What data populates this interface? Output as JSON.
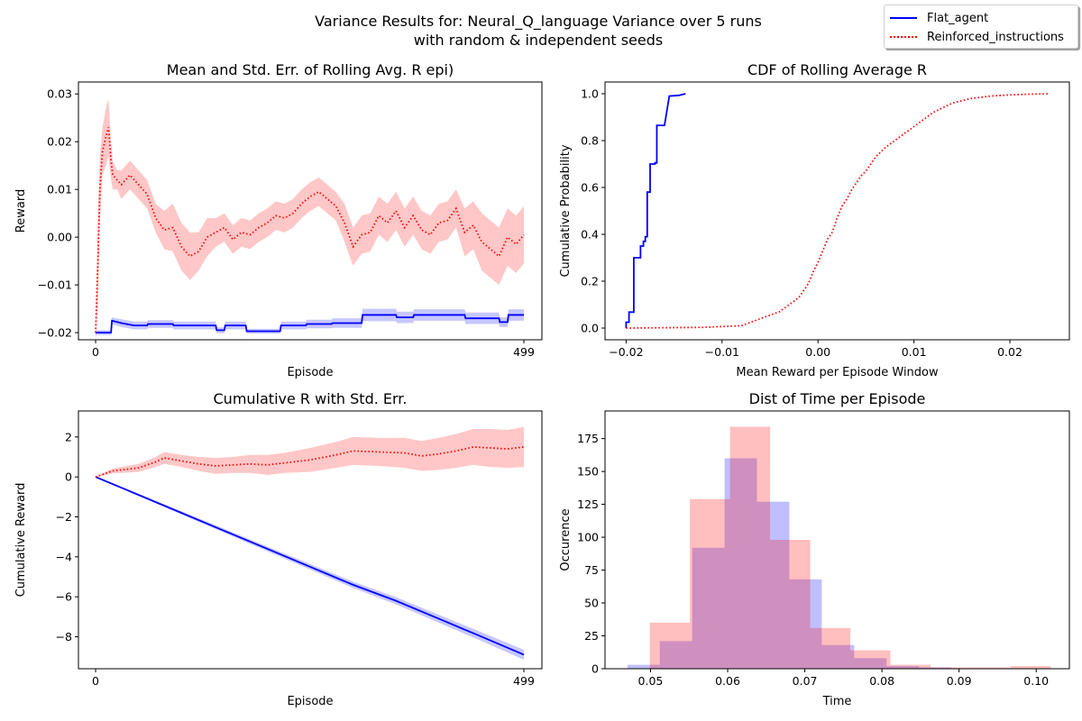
{
  "figure": {
    "suptitle_line1": "Variance Results for: Neural_Q_language Variance over 5 runs",
    "suptitle_line2": "with random & independent seeds",
    "colors": {
      "flat": "#0000ff",
      "reinforced": "#ff0000",
      "flat_fill": "#0000ff",
      "reinforced_fill": "#ff0000"
    },
    "legend": [
      {
        "label": "Flat_agent",
        "color": "#0000ff",
        "style": "solid"
      },
      {
        "label": "Reinforced_instructions",
        "color": "#ff0000",
        "style": "dotted"
      }
    ]
  },
  "chart_data": [
    {
      "type": "line",
      "title": "Mean and Std. Err. of Rolling Avg. R epi)",
      "xlabel": "Episode",
      "ylabel": "Reward",
      "xlim": [
        -20,
        520
      ],
      "ylim": [
        -0.0215,
        0.0325
      ],
      "xticks": [
        0,
        499
      ],
      "xtick_labels": [
        "0",
        "499"
      ],
      "yticks": [
        -0.02,
        -0.01,
        0.0,
        0.01,
        0.02,
        0.03
      ],
      "ytick_labels": [
        "−0.02",
        "−0.01",
        "0.00",
        "0.01",
        "0.02",
        "0.03"
      ],
      "series": [
        {
          "name": "Flat_agent",
          "style": "solid",
          "x": [
            0,
            18,
            19,
            30,
            45,
            60,
            61,
            90,
            91,
            120,
            140,
            141,
            150,
            151,
            175,
            176,
            200,
            215,
            216,
            245,
            246,
            275,
            276,
            310,
            311,
            350,
            351,
            370,
            371,
            430,
            431,
            470,
            471,
            480,
            481,
            499
          ],
          "y": [
            -0.02,
            -0.02,
            -0.0175,
            -0.018,
            -0.0185,
            -0.0185,
            -0.0182,
            -0.0182,
            -0.0185,
            -0.0185,
            -0.0185,
            -0.0195,
            -0.0195,
            -0.0185,
            -0.0185,
            -0.0197,
            -0.0197,
            -0.0197,
            -0.0185,
            -0.0185,
            -0.0182,
            -0.0182,
            -0.018,
            -0.018,
            -0.0163,
            -0.0163,
            -0.0168,
            -0.0168,
            -0.0163,
            -0.0163,
            -0.017,
            -0.017,
            -0.0178,
            -0.0178,
            -0.0163,
            -0.0163
          ],
          "err": [
            0.0005,
            0.0005,
            0.0007,
            0.0008,
            0.0008,
            0.0008,
            0.0008,
            0.0008,
            0.0008,
            0.0008,
            0.0008,
            0.0006,
            0.0006,
            0.0008,
            0.0008,
            0.0005,
            0.0005,
            0.0005,
            0.0008,
            0.0008,
            0.0009,
            0.0009,
            0.001,
            0.001,
            0.0013,
            0.0013,
            0.0012,
            0.0012,
            0.0012,
            0.0012,
            0.0012,
            0.0012,
            0.001,
            0.001,
            0.0012,
            0.0012
          ]
        },
        {
          "name": "Reinforced_instructions",
          "style": "dotted",
          "x": [
            0,
            3,
            5,
            8,
            12,
            15,
            18,
            20,
            25,
            30,
            40,
            50,
            60,
            70,
            80,
            90,
            100,
            110,
            120,
            130,
            140,
            150,
            160,
            170,
            180,
            190,
            200,
            210,
            220,
            230,
            240,
            250,
            260,
            270,
            280,
            290,
            300,
            310,
            320,
            330,
            340,
            350,
            360,
            370,
            380,
            390,
            400,
            410,
            420,
            430,
            440,
            450,
            460,
            470,
            480,
            490,
            499
          ],
          "y": [
            -0.02,
            -0.003,
            0.01,
            0.018,
            0.021,
            0.023,
            0.016,
            0.013,
            0.012,
            0.011,
            0.013,
            0.011,
            0.009,
            0.004,
            0.0015,
            0.002,
            -0.002,
            -0.004,
            -0.003,
            0.0,
            0.001,
            0.002,
            -0.0005,
            0.001,
            0.0005,
            0.002,
            0.003,
            0.0045,
            0.004,
            0.005,
            0.007,
            0.0085,
            0.0095,
            0.008,
            0.0065,
            0.003,
            -0.002,
            0.0005,
            0.001,
            0.0045,
            0.003,
            0.0055,
            0.002,
            0.0045,
            0.0015,
            0.0005,
            0.003,
            0.0035,
            0.006,
            0.001,
            0.0025,
            -0.001,
            -0.0025,
            -0.004,
            0.0,
            -0.0015,
            0.0005
          ],
          "err": [
            0.002,
            0.01,
            0.007,
            0.005,
            0.006,
            0.006,
            0.004,
            0.003,
            0.002,
            0.003,
            0.003,
            0.003,
            0.003,
            0.003,
            0.004,
            0.005,
            0.005,
            0.005,
            0.004,
            0.004,
            0.003,
            0.003,
            0.003,
            0.003,
            0.003,
            0.003,
            0.003,
            0.003,
            0.003,
            0.003,
            0.003,
            0.003,
            0.003,
            0.003,
            0.003,
            0.004,
            0.004,
            0.004,
            0.004,
            0.004,
            0.004,
            0.004,
            0.004,
            0.004,
            0.004,
            0.004,
            0.004,
            0.004,
            0.004,
            0.005,
            0.005,
            0.006,
            0.006,
            0.006,
            0.006,
            0.006,
            0.006
          ]
        }
      ]
    },
    {
      "type": "line",
      "title": "CDF of Rolling Average R",
      "xlabel": "Mean Reward per Episode Window",
      "ylabel": "Cumulative Probability",
      "xlim": [
        -0.0222,
        0.0262
      ],
      "ylim": [
        -0.05,
        1.05
      ],
      "xticks": [
        -0.02,
        -0.01,
        0.0,
        0.01,
        0.02
      ],
      "xtick_labels": [
        "−0.02",
        "−0.01",
        "0.00",
        "0.01",
        "0.02"
      ],
      "yticks": [
        0.0,
        0.2,
        0.4,
        0.6,
        0.8,
        1.0
      ],
      "ytick_labels": [
        "0.0",
        "0.2",
        "0.4",
        "0.6",
        "0.8",
        "1.0"
      ],
      "series": [
        {
          "name": "Flat_agent",
          "style": "solid",
          "x": [
            -0.02,
            -0.02,
            -0.0197,
            -0.0197,
            -0.0195,
            -0.0195,
            -0.0192,
            -0.0192,
            -0.0185,
            -0.0185,
            -0.0182,
            -0.0182,
            -0.018,
            -0.018,
            -0.0178,
            -0.0178,
            -0.0175,
            -0.0175,
            -0.017,
            -0.017,
            -0.0168,
            -0.0168,
            -0.0163,
            -0.0163,
            -0.016,
            -0.0155,
            -0.0145,
            -0.0138
          ],
          "y": [
            0.0,
            0.025,
            0.025,
            0.068,
            0.068,
            0.068,
            0.068,
            0.3,
            0.3,
            0.35,
            0.35,
            0.37,
            0.37,
            0.39,
            0.39,
            0.58,
            0.58,
            0.7,
            0.7,
            0.705,
            0.705,
            0.865,
            0.865,
            0.865,
            0.865,
            0.99,
            0.993,
            1.0
          ]
        },
        {
          "name": "Reinforced_instructions",
          "style": "dotted",
          "x": [
            -0.02,
            -0.012,
            -0.008,
            -0.006,
            -0.004,
            -0.003,
            -0.002,
            -0.0015,
            -0.001,
            -0.0005,
            0.0,
            0.0005,
            0.001,
            0.0015,
            0.002,
            0.0025,
            0.003,
            0.0035,
            0.004,
            0.0045,
            0.005,
            0.0055,
            0.006,
            0.007,
            0.008,
            0.009,
            0.01,
            0.011,
            0.012,
            0.013,
            0.014,
            0.016,
            0.018,
            0.02,
            0.022,
            0.024
          ],
          "y": [
            0.0,
            0.003,
            0.01,
            0.04,
            0.07,
            0.1,
            0.13,
            0.16,
            0.19,
            0.24,
            0.28,
            0.33,
            0.38,
            0.41,
            0.47,
            0.52,
            0.55,
            0.59,
            0.62,
            0.65,
            0.67,
            0.7,
            0.73,
            0.77,
            0.8,
            0.83,
            0.86,
            0.89,
            0.92,
            0.94,
            0.96,
            0.98,
            0.99,
            0.995,
            0.998,
            1.0
          ]
        }
      ]
    },
    {
      "type": "area",
      "title": "Cumulative R with Std. Err.",
      "xlabel": "Episode",
      "ylabel": "Cumulative Reward",
      "xlim": [
        -20,
        520
      ],
      "ylim": [
        -9.6,
        3.3
      ],
      "xticks": [
        0,
        499
      ],
      "xtick_labels": [
        "0",
        "499"
      ],
      "yticks": [
        -8,
        -6,
        -4,
        -2,
        0,
        2
      ],
      "ytick_labels": [
        "−8",
        "−6",
        "−4",
        "−2",
        "0",
        "2"
      ],
      "series": [
        {
          "name": "Flat_agent",
          "style": "solid",
          "x": [
            0,
            50,
            100,
            150,
            200,
            250,
            300,
            350,
            400,
            450,
            499
          ],
          "y": [
            0,
            -0.9,
            -1.8,
            -2.7,
            -3.6,
            -4.5,
            -5.4,
            -6.2,
            -7.1,
            -8.0,
            -8.9
          ],
          "err": [
            0.0,
            0.05,
            0.08,
            0.1,
            0.12,
            0.14,
            0.16,
            0.18,
            0.2,
            0.22,
            0.25
          ]
        },
        {
          "name": "Reinforced_instructions",
          "style": "dotted",
          "x": [
            0,
            10,
            20,
            30,
            50,
            70,
            80,
            100,
            120,
            140,
            160,
            180,
            200,
            220,
            250,
            280,
            300,
            330,
            360,
            380,
            400,
            420,
            440,
            460,
            480,
            499
          ],
          "y": [
            0,
            0.15,
            0.3,
            0.35,
            0.45,
            0.75,
            0.95,
            0.8,
            0.65,
            0.55,
            0.6,
            0.65,
            0.6,
            0.7,
            0.85,
            1.1,
            1.3,
            1.25,
            1.2,
            1.05,
            1.15,
            1.3,
            1.5,
            1.45,
            1.4,
            1.5
          ],
          "err": [
            0.0,
            0.08,
            0.12,
            0.15,
            0.2,
            0.25,
            0.3,
            0.3,
            0.35,
            0.4,
            0.4,
            0.45,
            0.5,
            0.5,
            0.6,
            0.65,
            0.7,
            0.7,
            0.75,
            0.75,
            0.8,
            0.85,
            0.9,
            0.95,
            0.95,
            1.0
          ]
        }
      ]
    },
    {
      "type": "bar",
      "title": "Dist of Time per Episode",
      "xlabel": "Time",
      "ylabel": "Occurence",
      "xlim": [
        0.0441,
        0.1043
      ],
      "ylim": [
        0,
        196
      ],
      "xticks": [
        0.05,
        0.06,
        0.07,
        0.08,
        0.09,
        0.1
      ],
      "xtick_labels": [
        "0.05",
        "0.06",
        "0.07",
        "0.08",
        "0.09",
        "0.10"
      ],
      "yticks": [
        0,
        25,
        50,
        75,
        100,
        125,
        150,
        175
      ],
      "ytick_labels": [
        "0",
        "25",
        "50",
        "75",
        "100",
        "125",
        "150",
        "175"
      ],
      "series": [
        {
          "name": "Flat_agent",
          "bin_edges": [
            0.047,
            0.0512,
            0.0554,
            0.0596,
            0.0638,
            0.068,
            0.0722,
            0.0764,
            0.0806,
            0.0848,
            0.089
          ],
          "counts": [
            3,
            21,
            92,
            160,
            127,
            68,
            18,
            8,
            2,
            1
          ]
        },
        {
          "name": "Reinforced_instructions",
          "bin_edges": [
            0.0499,
            0.0551,
            0.0603,
            0.0655,
            0.0707,
            0.0759,
            0.0811,
            0.0863,
            0.0915,
            0.0967,
            0.1019
          ],
          "counts": [
            35,
            129,
            184,
            98,
            31,
            14,
            3,
            1,
            1,
            2
          ]
        }
      ]
    }
  ]
}
